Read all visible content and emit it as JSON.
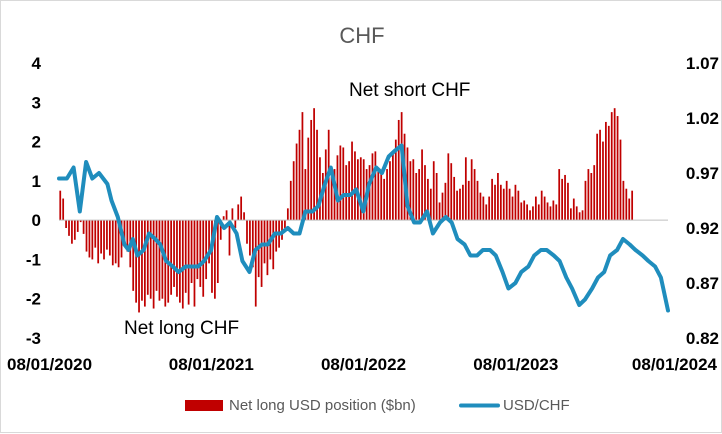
{
  "chart_data": {
    "type": "bar+line",
    "title": "CHF",
    "x_tick_labels": [
      "08/01/2020",
      "08/01/2021",
      "08/01/2022",
      "08/01/2023",
      "08/01/2024"
    ],
    "x_range": [
      "2020-08-01",
      "2024-08-01"
    ],
    "left_axis": {
      "ticks": [
        "4",
        "3",
        "2",
        "1",
        "0",
        "-1",
        "-2",
        "-3"
      ],
      "ylim": [
        -3,
        4
      ]
    },
    "right_axis": {
      "ticks": [
        "1.07",
        "1.02",
        "0.97",
        "0.92",
        "0.87",
        "0.82"
      ],
      "ylim": [
        0.82,
        1.07
      ]
    },
    "annotations": [
      "Net short CHF",
      "Net long CHF"
    ],
    "colors": {
      "bars": "#c00000",
      "line": "#1f8dbd",
      "title": "#595959"
    },
    "series": [
      {
        "name": "Net long USD position ($bn)",
        "type": "bar",
        "axis": "left",
        "x_start": "2020-08-04",
        "step_days": 7,
        "values": [
          0.75,
          0.55,
          -0.2,
          -0.4,
          -0.6,
          -0.5,
          -0.3,
          -0.05,
          -0.35,
          -0.8,
          -0.95,
          -1.0,
          -0.7,
          -1.1,
          -0.85,
          -1.0,
          -0.75,
          -0.9,
          -1.15,
          -1.1,
          -1.2,
          -0.95,
          -0.6,
          -0.8,
          -1.2,
          -1.8,
          -2.1,
          -2.35,
          -2.05,
          -2.2,
          -1.9,
          -2.0,
          -2.25,
          -1.8,
          -2.05,
          -2.0,
          -2.2,
          -2.1,
          -1.9,
          -1.7,
          -1.95,
          -2.1,
          -2.25,
          -1.85,
          -2.15,
          -1.6,
          -2.2,
          -1.5,
          -1.7,
          -1.95,
          -1.5,
          -1.1,
          -1.85,
          -2.0,
          -1.6,
          -0.5,
          0.1,
          0.25,
          -0.9,
          0.3,
          -0.2,
          0.4,
          0.6,
          0.2,
          -0.6,
          -0.9,
          -1.2,
          -2.2,
          -1.45,
          -1.7,
          -1.1,
          -1.4,
          -1.0,
          -1.25,
          -0.8,
          -0.7,
          -0.5,
          -0.2,
          0.3,
          1.0,
          1.5,
          1.95,
          2.3,
          2.75,
          1.3,
          2.1,
          2.55,
          2.85,
          2.3,
          1.6,
          1.2,
          1.8,
          2.3,
          1.1,
          1.3,
          1.65,
          1.9,
          1.85,
          1.4,
          1.5,
          2.0,
          1.75,
          1.55,
          1.6,
          1.55,
          1.3,
          1.4,
          1.7,
          1.75,
          1.3,
          1.25,
          1.05,
          1.3,
          1.5,
          1.7,
          2.05,
          2.55,
          2.75,
          2.2,
          1.85,
          1.5,
          1.55,
          1.2,
          1.3,
          1.8,
          1.4,
          1.05,
          0.8,
          1.5,
          1.2,
          0.45,
          0.7,
          0.95,
          1.7,
          1.45,
          1.1,
          0.75,
          0.8,
          0.9,
          1.6,
          1.0,
          1.55,
          1.3,
          1.0,
          0.7,
          0.6,
          0.4,
          0.6,
          1.05,
          0.9,
          1.2,
          0.9,
          0.8,
          1.0,
          0.8,
          0.6,
          0.9,
          0.75,
          0.45,
          0.5,
          0.4,
          0.25,
          0.35,
          0.6,
          0.4,
          0.75,
          0.6,
          0.45,
          0.35,
          0.5,
          0.4,
          1.3,
          1.05,
          1.15,
          0.95,
          0.3,
          0.55,
          0.35,
          0.2,
          0.25,
          1.0,
          1.3,
          1.2,
          1.4,
          2.2,
          2.3,
          2.0,
          2.5,
          2.4,
          2.75,
          2.85,
          2.65,
          2.05,
          1.0,
          0.8,
          0.55,
          0.75
        ]
      },
      {
        "name": "USD/CHF",
        "type": "line",
        "axis": "right",
        "x": [
          "2020-08-01",
          "2020-08-20",
          "2020-09-05",
          "2020-09-20",
          "2020-10-05",
          "2020-10-20",
          "2020-11-05",
          "2020-11-15",
          "2020-11-25",
          "2020-12-05",
          "2020-12-20",
          "2021-01-05",
          "2021-01-15",
          "2021-01-25",
          "2021-02-05",
          "2021-02-20",
          "2021-03-05",
          "2021-03-20",
          "2021-04-01",
          "2021-04-15",
          "2021-05-01",
          "2021-05-15",
          "2021-06-01",
          "2021-06-15",
          "2021-07-01",
          "2021-07-15",
          "2021-08-01",
          "2021-08-15",
          "2021-09-01",
          "2021-09-15",
          "2021-10-01",
          "2021-10-15",
          "2021-11-01",
          "2021-11-15",
          "2021-12-01",
          "2021-12-15",
          "2022-01-01",
          "2022-01-15",
          "2022-02-01",
          "2022-02-15",
          "2022-03-01",
          "2022-03-15",
          "2022-04-01",
          "2022-04-15",
          "2022-05-01",
          "2022-05-15",
          "2022-06-01",
          "2022-06-15",
          "2022-07-01",
          "2022-07-15",
          "2022-08-01",
          "2022-08-15",
          "2022-09-01",
          "2022-09-15",
          "2022-10-01",
          "2022-10-15",
          "2022-11-01",
          "2022-11-15",
          "2022-12-01",
          "2022-12-15",
          "2023-01-01",
          "2023-01-15",
          "2023-02-01",
          "2023-02-15",
          "2023-03-01",
          "2023-03-15",
          "2023-04-01",
          "2023-04-15",
          "2023-05-01",
          "2023-05-15",
          "2023-06-01",
          "2023-06-15",
          "2023-07-01",
          "2023-07-15",
          "2023-08-01",
          "2023-08-15",
          "2023-09-01",
          "2023-09-15",
          "2023-10-01",
          "2023-10-15",
          "2023-11-01",
          "2023-11-15",
          "2023-12-01",
          "2023-12-15",
          "2024-01-01",
          "2024-01-15",
          "2024-02-01",
          "2024-02-15",
          "2024-03-01",
          "2024-03-15",
          "2024-04-01",
          "2024-04-15",
          "2024-05-01",
          "2024-05-15",
          "2024-06-01",
          "2024-06-15",
          "2024-07-01",
          "2024-07-15",
          "2024-08-01"
        ],
        "values": [
          0.965,
          0.965,
          0.975,
          0.935,
          0.98,
          0.965,
          0.97,
          0.965,
          0.96,
          0.945,
          0.93,
          0.905,
          0.9,
          0.91,
          0.895,
          0.9,
          0.915,
          0.91,
          0.905,
          0.89,
          0.885,
          0.88,
          0.885,
          0.885,
          0.885,
          0.89,
          0.9,
          0.93,
          0.92,
          0.925,
          0.915,
          0.89,
          0.88,
          0.9,
          0.905,
          0.905,
          0.915,
          0.915,
          0.92,
          0.915,
          0.915,
          0.935,
          0.935,
          0.94,
          0.96,
          0.975,
          0.945,
          0.95,
          0.95,
          0.955,
          0.935,
          0.96,
          0.975,
          0.97,
          0.985,
          0.99,
          0.995,
          0.94,
          0.925,
          0.925,
          0.935,
          0.915,
          0.925,
          0.93,
          0.925,
          0.91,
          0.905,
          0.895,
          0.895,
          0.9,
          0.9,
          0.895,
          0.88,
          0.865,
          0.87,
          0.88,
          0.885,
          0.895,
          0.9,
          0.9,
          0.895,
          0.89,
          0.875,
          0.865,
          0.85,
          0.855,
          0.865,
          0.875,
          0.88,
          0.895,
          0.9,
          0.91,
          0.905,
          0.9,
          0.895,
          0.89,
          0.885,
          0.875,
          0.845
        ]
      }
    ]
  }
}
